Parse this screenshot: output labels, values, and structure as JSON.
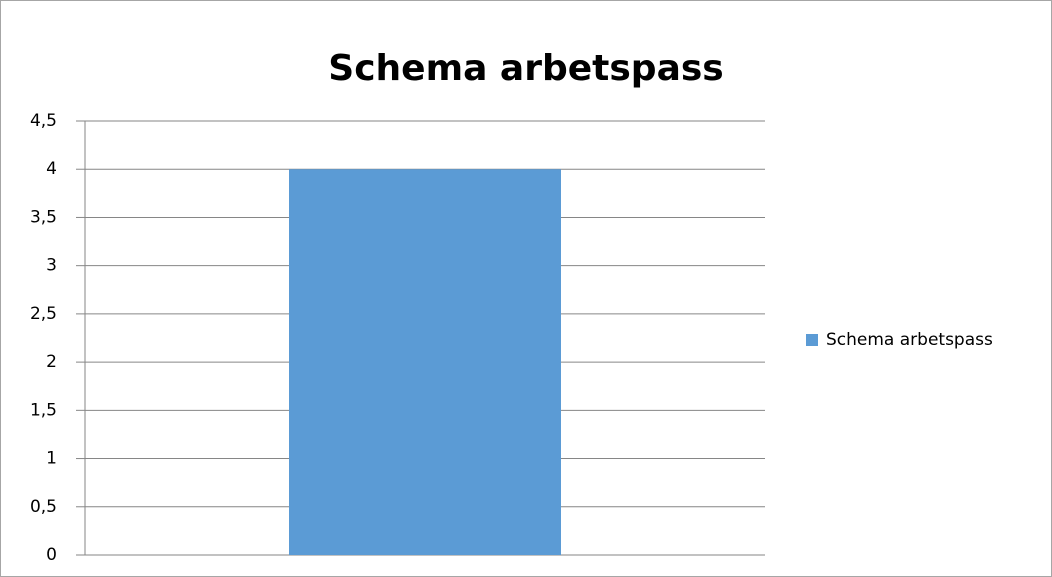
{
  "chart_data": {
    "type": "bar",
    "title": "Schema arbetspass",
    "categories": [
      null
    ],
    "series": [
      {
        "name": "Schema arbetspass",
        "color": "#5b9bd5",
        "values": [
          4
        ]
      }
    ],
    "ylim": [
      0,
      4.5
    ],
    "yticks": [
      0,
      {
        "value": 0.5,
        "label": "0,5"
      },
      1,
      {
        "value": 1.5,
        "label": "1,5"
      },
      2,
      {
        "value": 2.5,
        "label": "2,5"
      },
      3,
      {
        "value": 3.5,
        "label": "3,5"
      },
      4,
      {
        "value": 4.5,
        "label": "4,5"
      }
    ],
    "grid": true,
    "legend": "right"
  }
}
